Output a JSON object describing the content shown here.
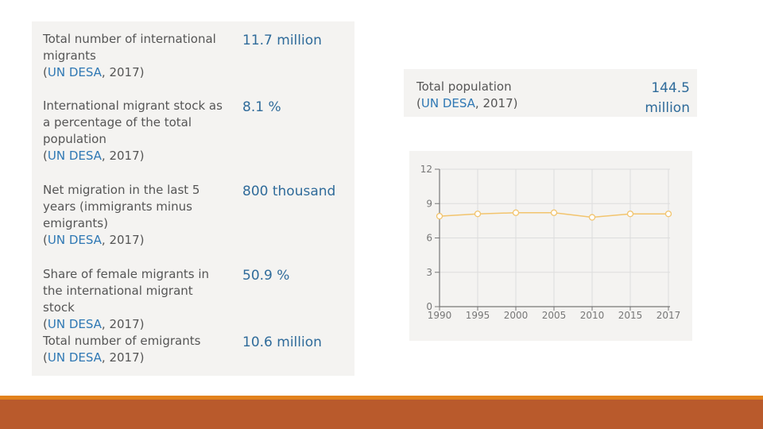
{
  "stats": [
    {
      "label": "Total number of international migrants",
      "value": "11.7 million",
      "source_link": "UN DESA",
      "source_rest": ", 2017)"
    },
    {
      "label": "International migrant stock as a percentage of the total population",
      "value": "8.1 %",
      "source_link": "UN DESA",
      "source_rest": ", 2017)"
    },
    {
      "label": "Net migration in the last 5 years (immigrants minus emigrants)",
      "value": "800 thousand",
      "source_link": "UN DESA",
      "source_rest": ", 2017)"
    },
    {
      "label": "Share of female migrants in the international migrant stock",
      "value": "50.9 %",
      "source_link": "UN DESA",
      "source_rest": ", 2017)"
    },
    {
      "label": "Total number of emigrants",
      "value": "10.6 million",
      "source_link": "UN DESA",
      "source_rest": ", 2017)"
    }
  ],
  "population": {
    "label": "Total population",
    "value": "144.5 million",
    "source_link": "UN DESA",
    "source_rest": ", 2017)"
  },
  "source_open": "(",
  "chart_data": {
    "type": "line",
    "x": [
      "1990",
      "1995",
      "2000",
      "2005",
      "2010",
      "2015",
      "2017"
    ],
    "yticks": [
      0,
      3,
      6,
      9,
      12
    ],
    "ylim": [
      0,
      12
    ],
    "grid": true,
    "series": [
      {
        "values": [
          7.9,
          8.1,
          8.2,
          8.2,
          7.8,
          8.1,
          8.1
        ],
        "color": "#f2c46d"
      }
    ],
    "axis_color": "#777777",
    "grid_color": "#dddddd"
  }
}
